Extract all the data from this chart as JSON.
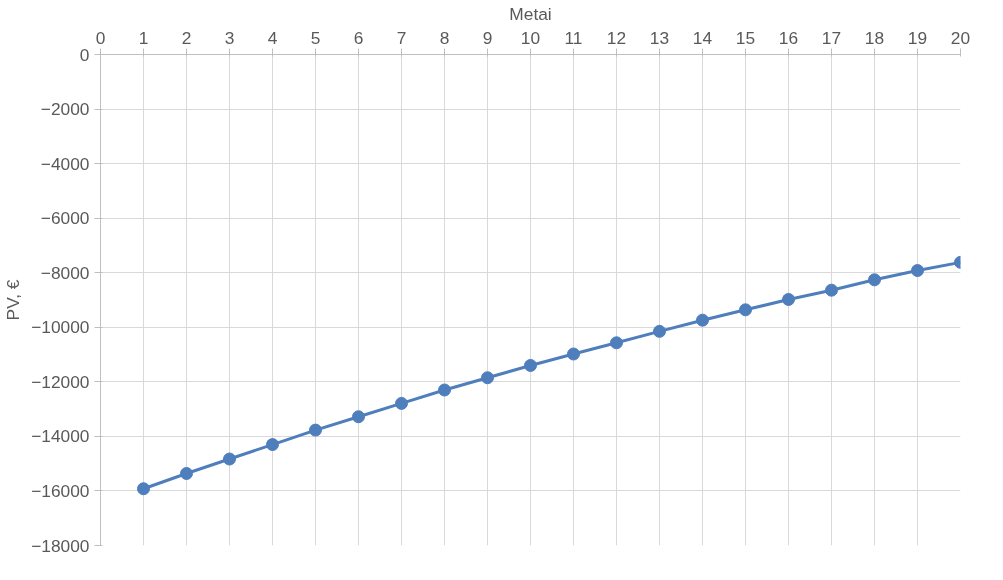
{
  "chart_data": {
    "type": "line",
    "xlabel": "Metai",
    "ylabel": "PV, €",
    "x": [
      1,
      2,
      3,
      4,
      5,
      6,
      7,
      8,
      9,
      10,
      11,
      12,
      13,
      14,
      15,
      16,
      17,
      18,
      19,
      20
    ],
    "series": [
      {
        "color": "#4f7ebc",
        "values": [
          -15920,
          -15360,
          -14830,
          -14300,
          -13770,
          -13280,
          -12790,
          -12300,
          -11850,
          -11400,
          -10980,
          -10570,
          -10150,
          -9740,
          -9360,
          -8980,
          -8640,
          -8260,
          -7920,
          -7620
        ]
      }
    ],
    "xlim": [
      0,
      20
    ],
    "xticks": [
      0,
      1,
      2,
      3,
      4,
      5,
      6,
      7,
      8,
      9,
      10,
      11,
      12,
      13,
      14,
      15,
      16,
      17,
      18,
      19,
      20
    ],
    "ylim": [
      -18000,
      0
    ],
    "yticks": [
      -18000,
      -16000,
      -14000,
      -12000,
      -10000,
      -8000,
      -6000,
      -4000,
      -2000,
      0
    ],
    "grid": true,
    "marker": "circle",
    "line_style": "solid"
  }
}
